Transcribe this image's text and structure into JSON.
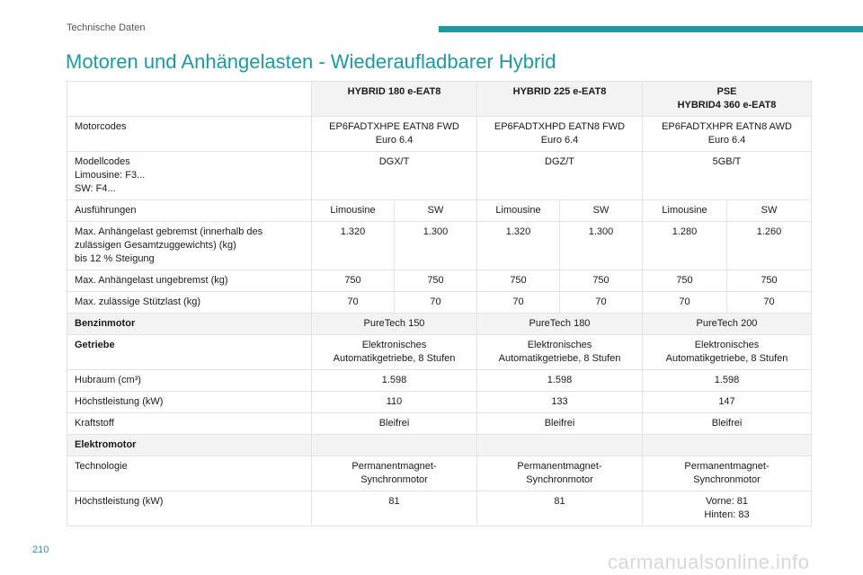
{
  "header": {
    "section": "Technische Daten",
    "accent_color": "#1e9aa3"
  },
  "title": "Motoren und Anhängelasten - Wiederaufladbarer Hybrid",
  "table": {
    "columns": [
      "HYBRID 180 e-EAT8",
      "HYBRID 225 e-EAT8",
      "PSE\nHYBRID4 360 e-EAT8"
    ],
    "motorcodes": {
      "label": "Motorcodes",
      "values": [
        "EP6FADTXHPE EATN8 FWD\nEuro 6.4",
        "EP6FADTXHPD EATN8 FWD\nEuro 6.4",
        "EP6FADTXHPR EATN8 AWD\nEuro 6.4"
      ]
    },
    "modellcodes": {
      "label": "Modellcodes\nLimousine: F3...\nSW: F4...",
      "values": [
        "DGX/T",
        "DGZ/T",
        "5GB/T"
      ]
    },
    "ausfuehrungen": {
      "label": "Ausführungen",
      "values": [
        "Limousine",
        "SW",
        "Limousine",
        "SW",
        "Limousine",
        "SW"
      ]
    },
    "anhaengelast_gebremst": {
      "label": "Max. Anhängelast gebremst (innerhalb des\nzulässigen Gesamtzuggewichts) (kg)\nbis 12 % Steigung",
      "values": [
        "1.320",
        "1.300",
        "1.320",
        "1.300",
        "1.280",
        "1.260"
      ]
    },
    "anhaengelast_ungebremst": {
      "label": "Max. Anhängelast ungebremst (kg)",
      "values": [
        "750",
        "750",
        "750",
        "750",
        "750",
        "750"
      ]
    },
    "stuetzlast": {
      "label": "Max. zulässige Stützlast (kg)",
      "values": [
        "70",
        "70",
        "70",
        "70",
        "70",
        "70"
      ]
    },
    "benzinmotor": {
      "label": "Benzinmotor",
      "values": [
        "PureTech 150",
        "PureTech 180",
        "PureTech 200"
      ]
    },
    "getriebe": {
      "label": "Getriebe",
      "values": [
        "Elektronisches\nAutomatikgetriebe, 8 Stufen",
        "Elektronisches\nAutomatikgetriebe, 8 Stufen",
        "Elektronisches\nAutomatikgetriebe, 8 Stufen"
      ]
    },
    "hubraum": {
      "label": "Hubraum (cm³)",
      "values": [
        "1.598",
        "1.598",
        "1.598"
      ]
    },
    "hoechstleistung": {
      "label": "Höchstleistung (kW)",
      "values": [
        "110",
        "133",
        "147"
      ]
    },
    "kraftstoff": {
      "label": "Kraftstoff",
      "values": [
        "Bleifrei",
        "Bleifrei",
        "Bleifrei"
      ]
    },
    "elektromotor": {
      "label": "Elektromotor"
    },
    "technologie": {
      "label": "Technologie",
      "values": [
        "Permanentmagnet-\nSynchronmotor",
        "Permanentmagnet-\nSynchronmotor",
        "Permanentmagnet-\nSynchronmotor"
      ]
    },
    "hoechstleistung_e": {
      "label": "Höchstleistung (kW)",
      "values": [
        "81",
        "81",
        "Vorne: 81\nHinten: 83"
      ]
    }
  },
  "page_number": "210",
  "watermark": "carmanualsonline.info"
}
